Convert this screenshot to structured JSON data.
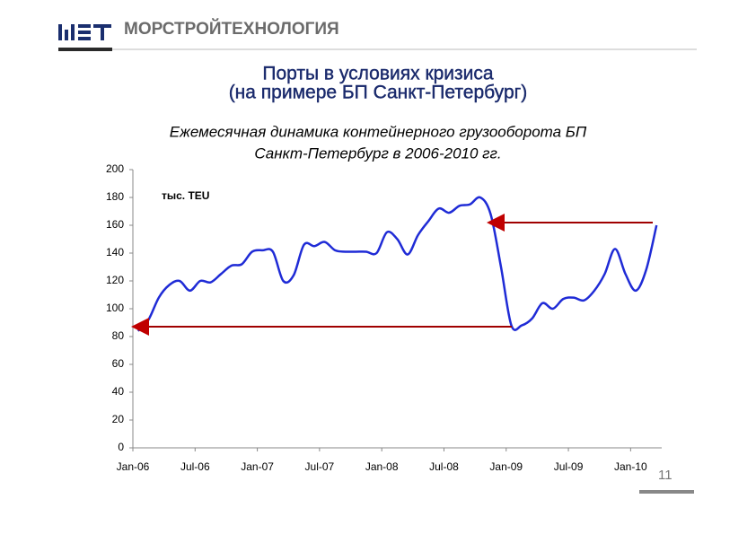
{
  "header": {
    "company": "МОРСТРОЙТЕХНОЛОГИЯ"
  },
  "slide_title": [
    "Порты в условиях кризиса",
    "(на примере БП Санкт-Петербург)"
  ],
  "page_number": "11",
  "chart_data": {
    "type": "line",
    "title": [
      "Ежемесячная динамика контейнерного грузооборота БП",
      "Санкт-Петербург в 2006-2010 гг."
    ],
    "y_label": "тыс. TEU",
    "categories": [
      "Jan-06",
      null,
      null,
      null,
      null,
      null,
      "Jul-06",
      null,
      null,
      null,
      null,
      null,
      "Jan-07",
      null,
      null,
      null,
      null,
      null,
      "Jul-07",
      null,
      null,
      null,
      null,
      null,
      "Jan-08",
      null,
      null,
      null,
      null,
      null,
      "Jul-08",
      null,
      null,
      null,
      null,
      null,
      "Jan-09",
      null,
      null,
      null,
      null,
      null,
      "Jul-09",
      null,
      null,
      null,
      null,
      null,
      "Jan-10",
      null,
      null
    ],
    "values": [
      84,
      92,
      108,
      117,
      120,
      113,
      120,
      119,
      125,
      131,
      132,
      141,
      142,
      141,
      120,
      124,
      146,
      145,
      148,
      142,
      141,
      141,
      141,
      140,
      155,
      150,
      139,
      153,
      163,
      172,
      169,
      174,
      175,
      180,
      168,
      130,
      88,
      88,
      93,
      104,
      100,
      107,
      108,
      106,
      113,
      125,
      143,
      125,
      113,
      128,
      160
    ],
    "color": "#1f2bd6",
    "ylim": [
      0,
      200
    ],
    "yticks": [
      0,
      20,
      40,
      60,
      80,
      100,
      120,
      140,
      160,
      180,
      200
    ]
  }
}
